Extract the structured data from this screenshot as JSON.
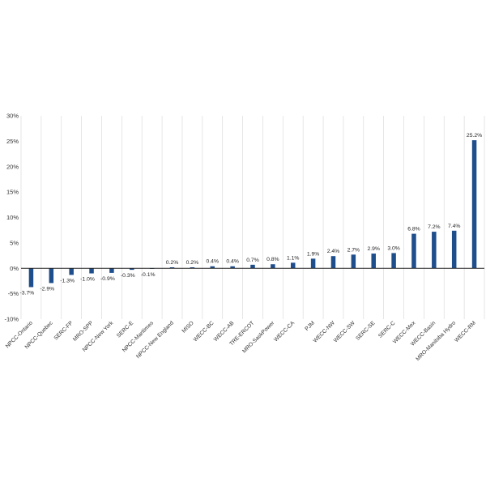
{
  "chart_data": {
    "type": "bar",
    "categories": [
      "NPCC-Ontario",
      "NPCC-Quebec",
      "SERC-FP",
      "MRO-SPP",
      "NPCC-New York",
      "SERC-E",
      "NPCC-Maritimes",
      "NPCC-New England",
      "MISO",
      "WECC-BC",
      "WECC-AB",
      "TRE-ERCOT",
      "MRO-SaskPower",
      "WECC-CA",
      "PJM",
      "WECC-NW",
      "WECC-SW",
      "SERC-SE",
      "SERC-C",
      "WECC-Mex",
      "WECC-Basin",
      "MRO-Manitoba Hydro",
      "WECC-RM"
    ],
    "values": [
      -3.7,
      -2.9,
      -1.3,
      -1.0,
      -0.9,
      -0.3,
      -0.1,
      0.2,
      0.2,
      0.4,
      0.4,
      0.7,
      0.8,
      1.1,
      1.9,
      2.4,
      2.7,
      2.9,
      3.0,
      6.8,
      7.2,
      7.4,
      25.2
    ],
    "data_labels": [
      "-3.7%",
      "-2.9%",
      "-1.3%",
      "-1.0%",
      "-0.9%",
      "-0.3%",
      "-0.1%",
      "0.2%",
      "0.2%",
      "0.4%",
      "0.4%",
      "0.7%",
      "0.8%",
      "1.1%",
      "1.9%",
      "2.4%",
      "2.7%",
      "2.9%",
      "3.0%",
      "6.8%",
      "7.2%",
      "7.4%",
      "25.2%"
    ],
    "ylim": [
      -10,
      30
    ],
    "yticks": [
      30,
      25,
      20,
      15,
      10,
      5,
      0,
      -5,
      -10
    ],
    "ytick_labels": [
      "30%",
      "25%",
      "20%",
      "15%",
      "10%",
      "5%",
      "0%",
      "-5%",
      "-10%"
    ],
    "grid": "vertical",
    "bar_color": "#1f4e8c",
    "title": "",
    "xlabel": "",
    "ylabel": ""
  }
}
